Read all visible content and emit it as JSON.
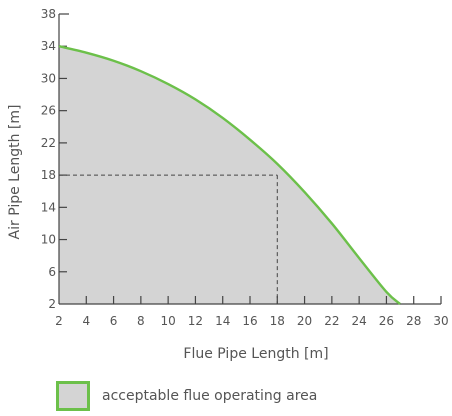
{
  "chart_data": {
    "type": "area",
    "xlabel": "Flue Pipe Length [m]",
    "ylabel": "Air Pipe Length [m]",
    "xlim": [
      2,
      30
    ],
    "ylim": [
      2,
      38
    ],
    "x_ticks": [
      2,
      4,
      6,
      8,
      10,
      12,
      14,
      16,
      18,
      20,
      22,
      24,
      26,
      28,
      30
    ],
    "y_ticks": [
      2,
      6,
      10,
      14,
      18,
      22,
      26,
      30,
      34,
      38
    ],
    "series": [
      {
        "name": "acceptable flue operating area",
        "x": [
          2,
          4,
          6,
          8,
          10,
          12,
          14,
          16,
          18,
          20,
          22,
          24,
          26,
          27
        ],
        "y": [
          34,
          33.2,
          32.2,
          30.9,
          29.3,
          27.4,
          25.1,
          22.4,
          19.4,
          15.9,
          12,
          7.7,
          3.5,
          2
        ]
      }
    ],
    "reference_point": {
      "x": 18,
      "y": 18
    },
    "fill_color": "#d4d4d4",
    "line_color": "#6cc04a",
    "legend": {
      "label": "acceptable flue operating area",
      "position": "bottom-left"
    },
    "grid": false
  }
}
